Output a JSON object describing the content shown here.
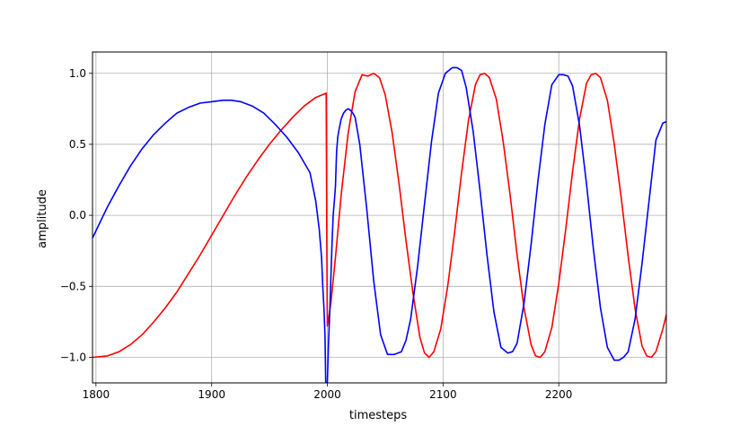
{
  "chart_data": {
    "type": "line",
    "title": "",
    "xlabel": "timesteps",
    "ylabel": "amplitude",
    "xlim": [
      1797,
      2293
    ],
    "ylim": [
      -1.18,
      1.15
    ],
    "grid": true,
    "legend": "none",
    "x_ticks": [
      1800,
      1900,
      2000,
      2100,
      2200
    ],
    "x_tick_labels": [
      "1800",
      "1900",
      "2000",
      "2100",
      "2200"
    ],
    "y_ticks": [
      -1.0,
      -0.5,
      0.0,
      0.5,
      1.0
    ],
    "y_tick_labels": [
      "−1.0",
      "−0.5",
      "0.0",
      "0.5",
      "1.0"
    ],
    "series": [
      {
        "color": "#ff0000",
        "x": [
          1797,
          1810,
          1820,
          1830,
          1840,
          1850,
          1860,
          1870,
          1880,
          1890,
          1900,
          1910,
          1920,
          1930,
          1940,
          1950,
          1960,
          1970,
          1980,
          1990,
          1999,
          1999.5,
          2000,
          2003,
          2007,
          2012,
          2018,
          2024,
          2030,
          2035,
          2040,
          2045,
          2050,
          2056,
          2062,
          2068,
          2074,
          2080,
          2084,
          2088,
          2092,
          2098,
          2104,
          2110,
          2116,
          2122,
          2128,
          2132,
          2136,
          2140,
          2146,
          2152,
          2158,
          2164,
          2170,
          2176,
          2180,
          2184,
          2188,
          2194,
          2200,
          2206,
          2212,
          2218,
          2224,
          2228,
          2232,
          2236,
          2242,
          2248,
          2254,
          2260,
          2266,
          2272,
          2276,
          2280,
          2284,
          2290,
          2293
        ],
        "y": [
          -1.0,
          -0.99,
          -0.96,
          -0.91,
          -0.84,
          -0.75,
          -0.65,
          -0.54,
          -0.41,
          -0.28,
          -0.14,
          0.0,
          0.14,
          0.27,
          0.39,
          0.5,
          0.6,
          0.69,
          0.77,
          0.83,
          0.86,
          -0.2,
          -0.78,
          -0.62,
          -0.3,
          0.15,
          0.58,
          0.87,
          0.99,
          0.98,
          1.0,
          0.97,
          0.85,
          0.58,
          0.22,
          -0.18,
          -0.55,
          -0.86,
          -0.97,
          -1.0,
          -0.96,
          -0.8,
          -0.5,
          -0.12,
          0.3,
          0.67,
          0.92,
          0.99,
          1.0,
          0.97,
          0.82,
          0.52,
          0.14,
          -0.28,
          -0.65,
          -0.91,
          -0.99,
          -1.0,
          -0.96,
          -0.79,
          -0.48,
          -0.1,
          0.31,
          0.68,
          0.93,
          0.99,
          1.0,
          0.97,
          0.81,
          0.5,
          0.12,
          -0.29,
          -0.66,
          -0.92,
          -0.99,
          -1.0,
          -0.96,
          -0.8,
          -0.7
        ]
      },
      {
        "color": "#0000ff",
        "x": [
          1797,
          1810,
          1820,
          1830,
          1840,
          1850,
          1860,
          1870,
          1880,
          1890,
          1900,
          1910,
          1917,
          1925,
          1935,
          1945,
          1955,
          1965,
          1975,
          1985,
          1990,
          1993,
          1995,
          1996,
          1997,
          1998,
          1998.6,
          1999,
          2000,
          2001,
          2002,
          2003,
          2004,
          2005,
          2006,
          2007,
          2008,
          2009,
          2010,
          2012,
          2014,
          2016,
          2018,
          2020,
          2022,
          2024,
          2028,
          2034,
          2040,
          2046,
          2052,
          2058,
          2064,
          2068,
          2072,
          2078,
          2084,
          2090,
          2096,
          2102,
          2108,
          2112,
          2116,
          2120,
          2126,
          2132,
          2138,
          2144,
          2150,
          2156,
          2160,
          2164,
          2170,
          2176,
          2182,
          2188,
          2194,
          2200,
          2204,
          2208,
          2212,
          2218,
          2224,
          2230,
          2236,
          2242,
          2248,
          2252,
          2256,
          2260,
          2266,
          2272,
          2278,
          2284,
          2290,
          2293
        ],
        "y": [
          -0.16,
          0.06,
          0.21,
          0.35,
          0.47,
          0.57,
          0.65,
          0.72,
          0.76,
          0.79,
          0.8,
          0.81,
          0.81,
          0.8,
          0.77,
          0.72,
          0.64,
          0.55,
          0.44,
          0.3,
          0.1,
          -0.1,
          -0.3,
          -0.5,
          -0.65,
          -0.85,
          -1.18,
          -1.18,
          -1.18,
          -0.9,
          -0.7,
          -0.45,
          -0.2,
          0.0,
          0.1,
          0.2,
          0.45,
          0.55,
          0.6,
          0.68,
          0.72,
          0.74,
          0.75,
          0.74,
          0.72,
          0.69,
          0.5,
          0.05,
          -0.46,
          -0.84,
          -0.98,
          -0.98,
          -0.96,
          -0.88,
          -0.73,
          -0.36,
          0.08,
          0.52,
          0.86,
          1.0,
          1.04,
          1.04,
          1.02,
          0.9,
          0.59,
          0.17,
          -0.28,
          -0.68,
          -0.93,
          -0.97,
          -0.96,
          -0.9,
          -0.62,
          -0.21,
          0.24,
          0.64,
          0.92,
          0.99,
          0.99,
          0.98,
          0.91,
          0.63,
          0.22,
          -0.24,
          -0.65,
          -0.93,
          -1.02,
          -1.02,
          -1.0,
          -0.96,
          -0.73,
          -0.34,
          0.1,
          0.53,
          0.65,
          0.66
        ]
      }
    ]
  }
}
